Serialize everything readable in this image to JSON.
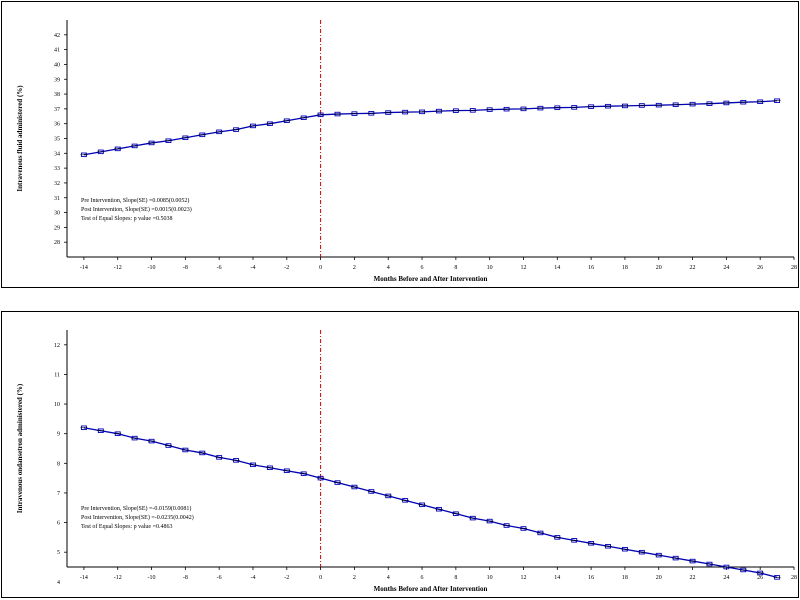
{
  "chart_data": [
    {
      "type": "line",
      "xlabel": "Months Before and After Intervention",
      "ylabel": "Intravenous fluid administered (%)",
      "xlim": [
        -15,
        28
      ],
      "ylim": [
        27,
        43
      ],
      "xticks": [
        -14,
        -12,
        -10,
        -8,
        -6,
        -4,
        -2,
        0,
        2,
        4,
        6,
        8,
        10,
        12,
        14,
        16,
        18,
        20,
        22,
        24,
        26,
        28
      ],
      "yticks": [
        28,
        29,
        30,
        31,
        32,
        33,
        34,
        35,
        36,
        37,
        38,
        39,
        40,
        41,
        42
      ],
      "intervention_x": 0,
      "grid": false,
      "annotations": [
        "Pre Intervention, Slope(SE) =0.0085(0.0052)",
        "Post Intervention, Slope(SE) =0.0015(0.0023)",
        "Test of Equal Slopes: p value =0.5038"
      ],
      "series": [
        {
          "x": [
            -14,
            -13,
            -12,
            -11,
            -10,
            -9,
            -8,
            -7,
            -6,
            -5,
            -4,
            -3,
            -2,
            -1,
            0,
            1,
            2,
            3,
            4,
            5,
            6,
            7,
            8,
            9,
            10,
            11,
            12,
            13,
            14,
            15,
            16,
            17,
            18,
            19,
            20,
            21,
            22,
            23,
            24,
            25,
            26,
            27
          ],
          "values": [
            33.9,
            34.1,
            34.3,
            34.5,
            34.7,
            34.85,
            35.05,
            35.25,
            35.45,
            35.6,
            35.85,
            36.0,
            36.2,
            36.4,
            36.6,
            36.65,
            36.68,
            36.7,
            36.75,
            36.78,
            36.8,
            36.85,
            36.88,
            36.9,
            36.95,
            36.98,
            37.0,
            37.05,
            37.08,
            37.1,
            37.15,
            37.18,
            37.2,
            37.23,
            37.25,
            37.28,
            37.32,
            37.35,
            37.4,
            37.45,
            37.48,
            37.55
          ]
        }
      ]
    },
    {
      "type": "line",
      "xlabel": "Months Before and After Intervention",
      "ylabel": "Intravenous ondansetron administered (%)",
      "xlim": [
        -15,
        28
      ],
      "ylim": [
        4.5,
        12.5
      ],
      "xticks": [
        -14,
        -12,
        -10,
        -8,
        -6,
        -4,
        -2,
        0,
        2,
        4,
        6,
        8,
        10,
        12,
        14,
        16,
        18,
        20,
        22,
        24,
        26,
        28
      ],
      "yticks": [
        5,
        6,
        7,
        8,
        9,
        10,
        11,
        12
      ],
      "extra_ytick_labels": [
        4
      ],
      "intervention_x": 0,
      "grid": false,
      "annotations": [
        "Pre Intervention, Slope(SE) =-0.0159(0.0081)",
        "Post Intervention, Slope(SE) =-0.0235(0.0042)",
        "Test of Equal Slopes: p value =0.4863"
      ],
      "series": [
        {
          "x": [
            -14,
            -13,
            -12,
            -11,
            -10,
            -9,
            -8,
            -7,
            -6,
            -5,
            -4,
            -3,
            -2,
            -1,
            0,
            1,
            2,
            3,
            4,
            5,
            6,
            7,
            8,
            9,
            10,
            11,
            12,
            13,
            14,
            15,
            16,
            17,
            18,
            19,
            20,
            21,
            22,
            23,
            24,
            25,
            26,
            27
          ],
          "values": [
            9.2,
            9.1,
            9.0,
            8.85,
            8.75,
            8.6,
            8.45,
            8.35,
            8.2,
            8.1,
            7.95,
            7.85,
            7.75,
            7.65,
            7.5,
            7.35,
            7.2,
            7.05,
            6.9,
            6.75,
            6.6,
            6.45,
            6.3,
            6.15,
            6.05,
            5.9,
            5.8,
            5.65,
            5.5,
            5.4,
            5.3,
            5.2,
            5.1,
            5.0,
            4.9,
            4.8,
            4.7,
            4.6,
            4.5,
            4.4,
            4.3,
            4.15
          ]
        }
      ]
    }
  ]
}
